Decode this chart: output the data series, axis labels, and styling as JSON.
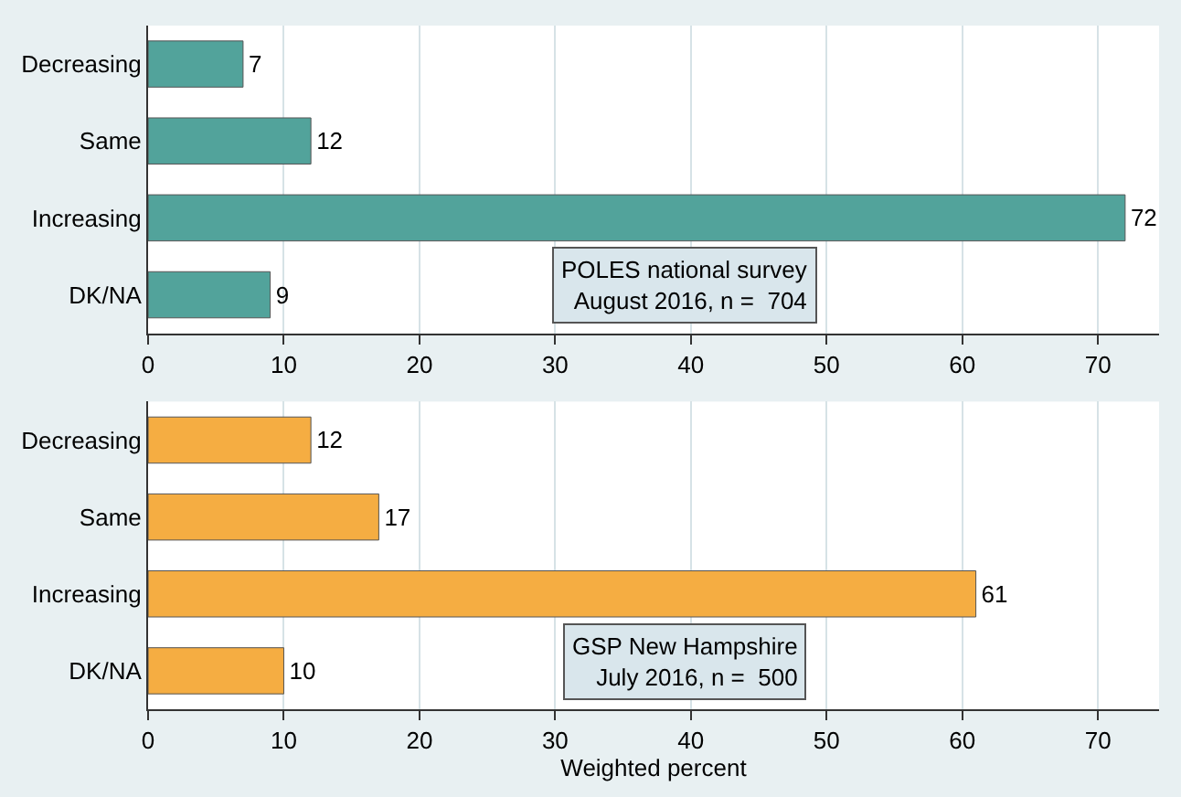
{
  "chart_data": [
    {
      "type": "bar",
      "orientation": "horizontal",
      "categories": [
        "Decreasing",
        "Same",
        "Increasing",
        "DK/NA"
      ],
      "values": [
        7,
        12,
        72,
        9
      ],
      "color": "#52a39b",
      "xlim": [
        0,
        74.5
      ],
      "xticks": [
        0,
        10,
        20,
        30,
        40,
        50,
        60,
        70
      ],
      "grid": "x",
      "data_labels": true,
      "annotations": [
        "POLES national survey\nAugust 2016, n =  704"
      ]
    },
    {
      "type": "bar",
      "orientation": "horizontal",
      "categories": [
        "Decreasing",
        "Same",
        "Increasing",
        "DK/NA"
      ],
      "values": [
        12,
        17,
        61,
        10
      ],
      "color": "#f5ad42",
      "xlim": [
        0,
        74.5
      ],
      "xticks": [
        0,
        10,
        20,
        30,
        40,
        50,
        60,
        70
      ],
      "grid": "x",
      "data_labels": true,
      "xlabel": "Weighted percent",
      "annotations": [
        "GSP New Hampshire\nJuly 2016, n =  500"
      ]
    }
  ]
}
